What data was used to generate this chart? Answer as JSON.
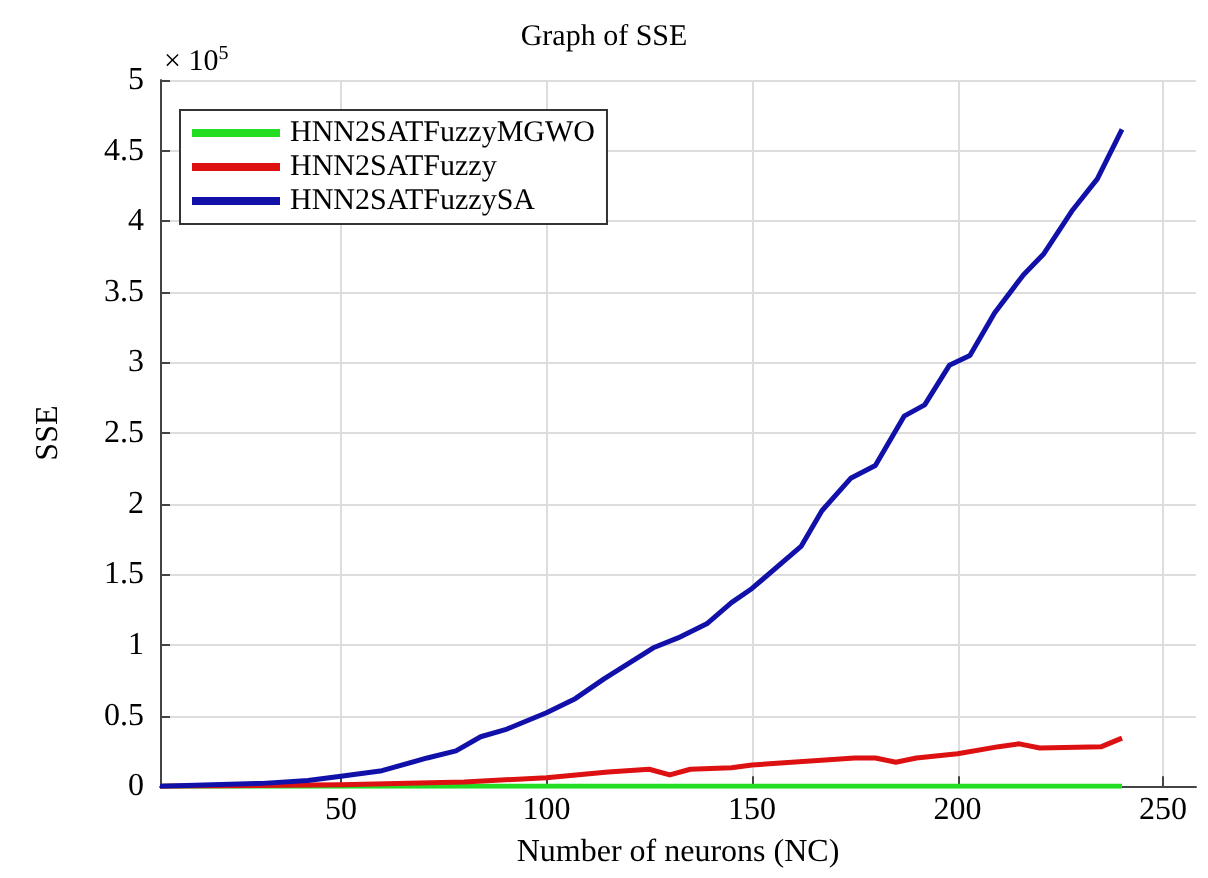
{
  "chart_data": {
    "type": "line",
    "title": "Graph of SSE",
    "xlabel": "Number of neurons (NC)",
    "ylabel": "SSE",
    "annotations": [
      "× 10$^{5}$"
    ],
    "xlim": [
      6,
      258
    ],
    "xticks": [
      50,
      100,
      150,
      200,
      250
    ],
    "ylim": [
      0,
      5
    ],
    "yticks": [
      0,
      0.5,
      1,
      1.5,
      2,
      2.5,
      3,
      3.5,
      4,
      4.5,
      5
    ],
    "grid": true,
    "legend": "top left",
    "marker": "none",
    "line_style": "solid",
    "series": [
      {
        "name": "HNN2SATFuzzyMGWO",
        "color": "#22dd22",
        "x": [
          6,
          50,
          100,
          150,
          200,
          240
        ],
        "values": [
          0,
          0,
          0,
          0,
          0,
          0
        ]
      },
      {
        "name": "HNN2SATFuzzy",
        "color": "#dd1111",
        "x": [
          6,
          50,
          80,
          100,
          115,
          125,
          130,
          135,
          145,
          150,
          175,
          180,
          185,
          190,
          200,
          210,
          215,
          220,
          235,
          240
        ],
        "values": [
          0,
          0.01,
          0.03,
          0.06,
          0.1,
          0.12,
          0.08,
          0.12,
          0.13,
          0.15,
          0.2,
          0.2,
          0.17,
          0.2,
          0.23,
          0.28,
          0.3,
          0.27,
          0.28,
          0.34
        ]
      },
      {
        "name": "HNN2SATFuzzySA",
        "color": "#1111aa",
        "x": [
          6,
          31,
          42,
          50,
          60,
          71,
          78,
          84,
          90,
          100,
          107,
          114,
          126,
          132,
          139,
          145,
          150,
          162,
          167,
          174,
          180,
          187,
          192,
          198,
          203,
          209,
          216,
          221,
          228,
          234,
          240
        ],
        "values": [
          0,
          0.02,
          0.04,
          0.07,
          0.11,
          0.2,
          0.25,
          0.35,
          0.4,
          0.52,
          0.62,
          0.76,
          0.98,
          1.05,
          1.15,
          1.3,
          1.4,
          1.7,
          1.95,
          2.18,
          2.27,
          2.62,
          2.7,
          2.98,
          3.05,
          3.35,
          3.62,
          3.77,
          4.08,
          4.3,
          4.65
        ]
      }
    ]
  }
}
